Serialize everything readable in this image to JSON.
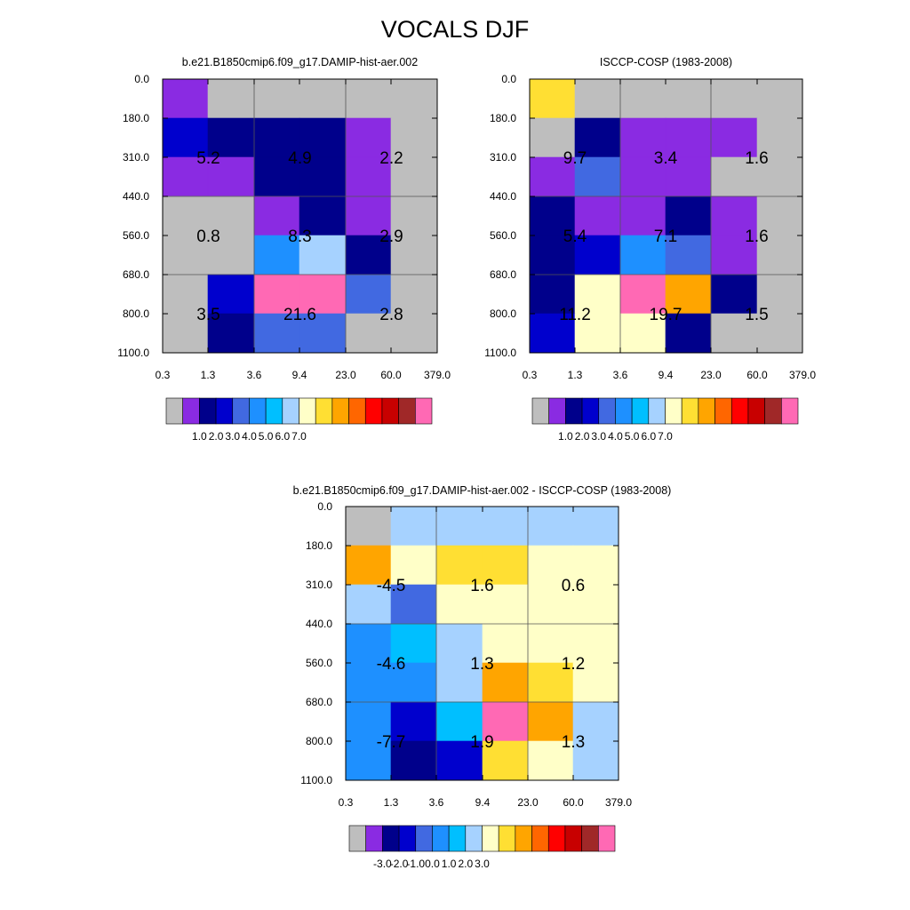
{
  "title": "VOCALS DJF",
  "chart_data": [
    {
      "type": "heatmap",
      "title": "b.e21.B1850cmip6.f09_g17.DAMIP-hist-aer.002",
      "x_ticks": [
        "0.3",
        "1.3",
        "3.6",
        "9.4",
        "23.0",
        "60.0",
        "379.0"
      ],
      "y_ticks": [
        "0.0",
        "180.0",
        "310.0",
        "440.0",
        "560.0",
        "680.0",
        "800.0",
        "1100.0"
      ],
      "cells": [
        [
          "#8a2be2",
          "#bebebe",
          "#bebebe",
          "#bebebe",
          "#bebebe",
          "#bebebe"
        ],
        [
          "#0000cd",
          "#00008b",
          "#00008b",
          "#00008b",
          "#8a2be2",
          "#bebebe"
        ],
        [
          "#8a2be2",
          "#8a2be2",
          "#00008b",
          "#00008b",
          "#8a2be2",
          "#bebebe"
        ],
        [
          "#bebebe",
          "#bebebe",
          "#8a2be2",
          "#00008b",
          "#8a2be2",
          "#bebebe"
        ],
        [
          "#bebebe",
          "#bebebe",
          "#1e90ff",
          "#a6d2ff",
          "#00008b",
          "#bebebe"
        ],
        [
          "#bebebe",
          "#0000cd",
          "#ff69b4",
          "#ff69b4",
          "#4169e1",
          "#bebebe"
        ],
        [
          "#bebebe",
          "#00008b",
          "#4169e1",
          "#4169e1",
          "#bebebe",
          "#bebebe"
        ]
      ],
      "annotations": [
        [
          "5.2",
          "4.9",
          "2.2"
        ],
        [
          "0.8",
          "8.3",
          "2.9"
        ],
        [
          "3.5",
          "21.6",
          "2.8"
        ]
      ],
      "colorbar": {
        "colors": [
          "#bebebe",
          "#8a2be2",
          "#00008b",
          "#0000cd",
          "#4169e1",
          "#1e90ff",
          "#00bfff",
          "#a6d2ff",
          "#ffffc8",
          "#ffdf33",
          "#ffa500",
          "#ff6600",
          "#ff0000",
          "#c80000",
          "#a02828",
          "#ff69b4"
        ],
        "labels": [
          "1.0",
          "2.0",
          "3.0",
          "4.0",
          "5.0",
          "6.0",
          "7.0"
        ]
      }
    },
    {
      "type": "heatmap",
      "title": "ISCCP-COSP (1983-2008)",
      "x_ticks": [
        "0.3",
        "1.3",
        "3.6",
        "9.4",
        "23.0",
        "60.0",
        "379.0"
      ],
      "y_ticks": [
        "0.0",
        "180.0",
        "310.0",
        "440.0",
        "560.0",
        "680.0",
        "800.0",
        "1100.0"
      ],
      "cells": [
        [
          "#ffdf33",
          "#bebebe",
          "#bebebe",
          "#bebebe",
          "#bebebe",
          "#bebebe"
        ],
        [
          "#bebebe",
          "#00008b",
          "#8a2be2",
          "#8a2be2",
          "#8a2be2",
          "#bebebe"
        ],
        [
          "#8a2be2",
          "#4169e1",
          "#8a2be2",
          "#8a2be2",
          "#bebebe",
          "#bebebe"
        ],
        [
          "#00008b",
          "#8a2be2",
          "#8a2be2",
          "#00008b",
          "#8a2be2",
          "#bebebe"
        ],
        [
          "#00008b",
          "#0000cd",
          "#1e90ff",
          "#4169e1",
          "#8a2be2",
          "#bebebe"
        ],
        [
          "#00008b",
          "#ffffc8",
          "#ff69b4",
          "#ffa500",
          "#00008b",
          "#bebebe"
        ],
        [
          "#0000cd",
          "#ffffc8",
          "#ffffc8",
          "#00008b",
          "#bebebe",
          "#bebebe"
        ]
      ],
      "annotations": [
        [
          "9.7",
          "3.4",
          "1.6"
        ],
        [
          "5.4",
          "7.1",
          "1.6"
        ],
        [
          "11.2",
          "19.7",
          "1.5"
        ]
      ],
      "colorbar": {
        "colors": [
          "#bebebe",
          "#8a2be2",
          "#00008b",
          "#0000cd",
          "#4169e1",
          "#1e90ff",
          "#00bfff",
          "#a6d2ff",
          "#ffffc8",
          "#ffdf33",
          "#ffa500",
          "#ff6600",
          "#ff0000",
          "#c80000",
          "#a02828",
          "#ff69b4"
        ],
        "labels": [
          "1.0",
          "2.0",
          "3.0",
          "4.0",
          "5.0",
          "6.0",
          "7.0"
        ]
      }
    },
    {
      "type": "heatmap",
      "title": "b.e21.B1850cmip6.f09_g17.DAMIP-hist-aer.002 - ISCCP-COSP (1983-2008)",
      "x_ticks": [
        "0.3",
        "1.3",
        "3.6",
        "9.4",
        "23.0",
        "60.0",
        "379.0"
      ],
      "y_ticks": [
        "0.0",
        "180.0",
        "310.0",
        "440.0",
        "560.0",
        "680.0",
        "800.0",
        "1100.0"
      ],
      "cells": [
        [
          "#bebebe",
          "#a6d2ff",
          "#a6d2ff",
          "#a6d2ff",
          "#a6d2ff",
          "#a6d2ff"
        ],
        [
          "#ffa500",
          "#ffffc8",
          "#ffdf33",
          "#ffdf33",
          "#ffffc8",
          "#ffffc8"
        ],
        [
          "#a6d2ff",
          "#4169e1",
          "#ffffc8",
          "#ffffc8",
          "#ffffc8",
          "#ffffc8"
        ],
        [
          "#1e90ff",
          "#00bfff",
          "#a6d2ff",
          "#ffffc8",
          "#ffffc8",
          "#ffffc8"
        ],
        [
          "#1e90ff",
          "#1e90ff",
          "#a6d2ff",
          "#ffa500",
          "#ffdf33",
          "#ffffc8"
        ],
        [
          "#1e90ff",
          "#0000cd",
          "#00bfff",
          "#ff69b4",
          "#ffa500",
          "#a6d2ff"
        ],
        [
          "#1e90ff",
          "#00008b",
          "#0000cd",
          "#ffdf33",
          "#ffffc8",
          "#a6d2ff"
        ]
      ],
      "annotations": [
        [
          "-4.5",
          "1.6",
          "0.6"
        ],
        [
          "-4.6",
          "1.3",
          "1.2"
        ],
        [
          "-7.7",
          "1.9",
          "1.3"
        ]
      ],
      "colorbar": {
        "colors": [
          "#bebebe",
          "#8a2be2",
          "#00008b",
          "#0000cd",
          "#4169e1",
          "#1e90ff",
          "#00bfff",
          "#a6d2ff",
          "#ffffc8",
          "#ffdf33",
          "#ffa500",
          "#ff6600",
          "#ff0000",
          "#c80000",
          "#a02828",
          "#ff69b4"
        ],
        "labels": [
          "-3.0",
          "-2.0",
          "-1.0",
          "0.0",
          "1.0",
          "2.0",
          "3.0"
        ]
      }
    }
  ]
}
